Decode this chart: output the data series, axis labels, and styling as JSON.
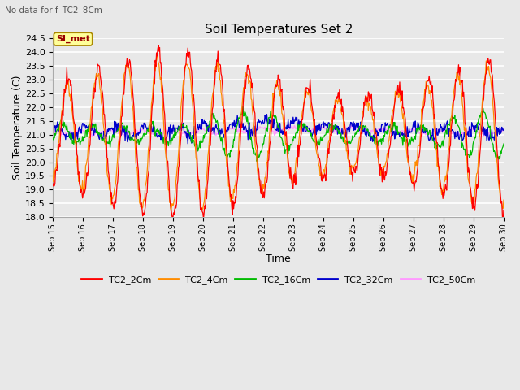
{
  "title": "Soil Temperatures Set 2",
  "subtitle": "No data for f_TC2_8Cm",
  "xlabel": "Time",
  "ylabel": "Soil Temperature (C)",
  "ylim": [
    18.0,
    24.5
  ],
  "yticks": [
    18.0,
    18.5,
    19.0,
    19.5,
    20.0,
    20.5,
    21.0,
    21.5,
    22.0,
    22.5,
    23.0,
    23.5,
    24.0,
    24.5
  ],
  "xtick_labels": [
    "Sep 15",
    "Sep 16",
    "Sep 17",
    "Sep 18",
    "Sep 19",
    "Sep 20",
    "Sep 21",
    "Sep 22",
    "Sep 23",
    "Sep 24",
    "Sep 25",
    "Sep 26",
    "Sep 27",
    "Sep 28",
    "Sep 29",
    "Sep 30"
  ],
  "background_color": "#e8e8e8",
  "series_colors": [
    "#ff0000",
    "#ff8c00",
    "#00bb00",
    "#0000cc",
    "#ff99ff"
  ],
  "series_names": [
    "TC2_2Cm",
    "TC2_4Cm",
    "TC2_16Cm",
    "TC2_32Cm",
    "TC2_50Cm"
  ],
  "annotation_text": "SI_met",
  "annotation_bg": "#ffff99",
  "annotation_border": "#aa8800"
}
